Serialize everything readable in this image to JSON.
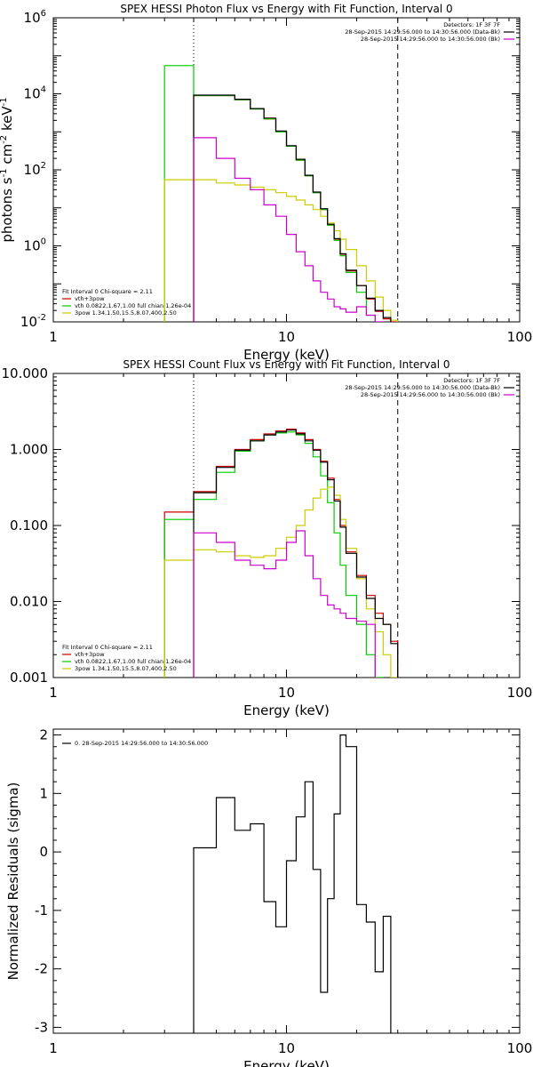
{
  "chart_data": [
    {
      "type": "line",
      "title": "SPEX HESSI Photon Flux vs Energy with Fit Function, Interval 0",
      "xlabel": "Energy (keV)",
      "ylabel_main": "photons s",
      "ylabel_sup1": "-1",
      "ylabel_mid": " cm",
      "ylabel_sup2": "-2",
      "ylabel_end": " keV",
      "ylabel_sup3": "-1",
      "xscale": "log",
      "yscale": "log",
      "xlim": [
        1,
        100
      ],
      "ylim": [
        0.01,
        1000000
      ],
      "xticks": [
        {
          "v": 1,
          "label": "1"
        },
        {
          "v": 10,
          "label": "10"
        },
        {
          "v": 100,
          "label": "100"
        }
      ],
      "yticks": [
        {
          "v": 0.01,
          "base": "10",
          "exp": "-2"
        },
        {
          "v": 1,
          "base": "10",
          "exp": "0"
        },
        {
          "v": 100,
          "base": "10",
          "exp": "2"
        },
        {
          "v": 10000,
          "base": "10",
          "exp": "4"
        },
        {
          "v": 1000000,
          "base": "10",
          "exp": "6"
        }
      ],
      "vlines": [
        {
          "x": 4.0,
          "style": "dotted"
        },
        {
          "x": 30.0,
          "style": "dashed"
        }
      ],
      "info": [
        "Detectors: 1F 3F 7F",
        "28-Sep-2015 14:29:56.000 to 14:30:56.000 (Data-Bk)",
        "28-Sep-2015 14:29:56.000 to 14:30:56.000 (Bk)"
      ],
      "info_colors": [
        "",
        "#000000",
        "#cc00cc"
      ],
      "legend_title": "Fit Interval 0   Chi-square = 2.11",
      "legend": [
        {
          "name": "vth+3pow",
          "color": "#cc0000"
        },
        {
          "name": "vth 0.0822,1.67,1.00  full chian 1.26e-04",
          "color": "#00cc00"
        },
        {
          "name": "3pow 1.34,1.50,15.5,8.07,400,2.50",
          "color": "#cccc00"
        }
      ],
      "edges": [
        3,
        4,
        5,
        6,
        7,
        8,
        9,
        10,
        11,
        12,
        13,
        14,
        15,
        16,
        17,
        18,
        20,
        22,
        24,
        26,
        28,
        30,
        33,
        36
      ],
      "series": [
        {
          "name": "vth+3pow",
          "color": "#cc0000",
          "values": [
            null,
            9000,
            9000,
            7000,
            4000,
            2200,
            1000,
            420,
            180,
            70,
            25,
            9,
            3.5,
            1.5,
            0.6,
            0.22,
            0.09,
            0.04,
            0.019,
            0.012,
            0.01,
            null,
            null
          ]
        },
        {
          "name": "vth",
          "color": "#00cc00",
          "values": [
            55000,
            9000,
            9000,
            7000,
            4000,
            2200,
            1000,
            420,
            180,
            70,
            25,
            9,
            3.5,
            1.4,
            0.55,
            0.2,
            0.06,
            0.015,
            0.005,
            null,
            null,
            null,
            null
          ]
        },
        {
          "name": "3pow",
          "color": "#cccc00",
          "values": [
            55,
            55,
            45,
            40,
            35,
            30,
            25,
            20,
            16,
            12,
            9,
            6,
            4,
            2.5,
            1.5,
            0.8,
            0.3,
            0.12,
            0.045,
            0.02,
            0.011,
            0.008,
            0.004
          ]
        },
        {
          "name": "data",
          "color": "#000000",
          "values": [
            null,
            9200,
            9200,
            7200,
            4100,
            2300,
            1050,
            430,
            190,
            72,
            26,
            9.5,
            3.7,
            1.55,
            0.62,
            0.23,
            0.09,
            0.042,
            0.02,
            0.013,
            0.0095,
            null,
            null
          ]
        },
        {
          "name": "background",
          "color": "#cc00cc",
          "values": [
            null,
            700,
            200,
            60,
            30,
            12,
            6,
            2,
            0.7,
            0.3,
            0.12,
            0.06,
            0.04,
            0.025,
            0.022,
            0.018,
            0.025,
            0.015,
            0.01,
            null,
            null,
            null,
            null
          ]
        }
      ]
    },
    {
      "type": "line",
      "title": "SPEX HESSI Count Flux vs Energy with Fit Function, Interval 0",
      "xlabel": "Energy (keV)",
      "xscale": "log",
      "yscale": "log",
      "xlim": [
        1,
        100
      ],
      "ylim": [
        0.001,
        10
      ],
      "xticks": [
        {
          "v": 1,
          "label": "1"
        },
        {
          "v": 10,
          "label": "10"
        },
        {
          "v": 100,
          "label": "100"
        }
      ],
      "yticks": [
        {
          "v": 0.001,
          "label": "0.001"
        },
        {
          "v": 0.01,
          "label": "0.010"
        },
        {
          "v": 0.1,
          "label": "0.100"
        },
        {
          "v": 1,
          "label": "1.000"
        },
        {
          "v": 10,
          "label": "10.000"
        }
      ],
      "vlines": [
        {
          "x": 4.0,
          "style": "dotted"
        },
        {
          "x": 30.0,
          "style": "dashed"
        }
      ],
      "info": [
        "Detectors: 1F 3F 7F",
        "28-Sep-2015 14:29:56.000 to 14:30:56.000 (Data-Bk)",
        "28-Sep-2015 14:29:56.000 to 14:30:56.000 (Bk)"
      ],
      "info_colors": [
        "",
        "#000000",
        "#cc00cc"
      ],
      "legend_title": "Fit Interval 0   Chi-square = 2.11",
      "legend": [
        {
          "name": "vth+3pow",
          "color": "#cc0000"
        },
        {
          "name": "vth 0.0822,1.67,1.00  full chian 1.26e-04",
          "color": "#00cc00"
        },
        {
          "name": "3pow 1.34,1.50,15.5,8.07,400,2.50",
          "color": "#cccc00"
        }
      ],
      "edges": [
        3,
        4,
        5,
        6,
        7,
        8,
        9,
        10,
        11,
        12,
        13,
        14,
        15,
        16,
        17,
        18,
        20,
        22,
        24,
        26,
        28,
        30,
        33,
        36
      ],
      "series": [
        {
          "name": "vth+3pow",
          "color": "#cc0000",
          "values": [
            0.15,
            0.28,
            0.6,
            1.0,
            1.35,
            1.6,
            1.75,
            1.85,
            1.65,
            1.35,
            1.0,
            0.7,
            0.42,
            0.22,
            0.1,
            0.045,
            0.022,
            0.012,
            0.007,
            0.005,
            0.003,
            null,
            null
          ]
        },
        {
          "name": "vth",
          "color": "#00cc00",
          "values": [
            0.12,
            0.22,
            0.5,
            0.95,
            1.3,
            1.55,
            1.65,
            1.7,
            1.55,
            1.2,
            0.8,
            0.45,
            0.2,
            0.08,
            0.03,
            0.012,
            0.005,
            0.002,
            0.001,
            null,
            null,
            null,
            null
          ]
        },
        {
          "name": "3pow",
          "color": "#cccc00",
          "values": [
            0.035,
            0.048,
            0.045,
            0.04,
            0.038,
            0.04,
            0.05,
            0.07,
            0.1,
            0.16,
            0.23,
            0.3,
            0.32,
            0.25,
            0.12,
            0.05,
            0.02,
            0.008,
            0.004,
            0.002,
            0.001,
            null,
            null
          ]
        },
        {
          "name": "data",
          "color": "#000000",
          "values": [
            null,
            0.27,
            0.58,
            0.98,
            1.3,
            1.55,
            1.7,
            1.8,
            1.6,
            1.3,
            0.98,
            0.68,
            0.4,
            0.21,
            0.095,
            0.043,
            0.021,
            0.011,
            0.006,
            0.005,
            0.0028,
            null,
            null
          ]
        },
        {
          "name": "background",
          "color": "#cc00cc",
          "values": [
            null,
            0.08,
            0.06,
            0.035,
            0.03,
            0.027,
            0.035,
            0.06,
            0.085,
            0.04,
            0.02,
            0.012,
            0.009,
            0.008,
            0.007,
            0.006,
            0.0055,
            0.005,
            null,
            null,
            null,
            null,
            null
          ]
        }
      ]
    },
    {
      "type": "line",
      "xlabel": "Energy (keV)",
      "ylabel": "Normalized Residuals (sigma)",
      "xscale": "log",
      "yscale": "linear",
      "xlim": [
        1,
        100
      ],
      "ylim": [
        -3.1,
        2.1
      ],
      "xticks": [
        {
          "v": 1,
          "label": "1"
        },
        {
          "v": 10,
          "label": "10"
        },
        {
          "v": 100,
          "label": "100"
        }
      ],
      "yticks": [
        {
          "v": -3,
          "label": "-3"
        },
        {
          "v": -2,
          "label": "-2"
        },
        {
          "v": -1,
          "label": "-1"
        },
        {
          "v": 0,
          "label": "0"
        },
        {
          "v": 1,
          "label": "1"
        },
        {
          "v": 2,
          "label": "2"
        }
      ],
      "legend": [
        {
          "name": "0. 28-Sep-2015 14:29:56.000 to 14:30:56.000",
          "color": "#000000"
        }
      ],
      "edges": [
        4,
        5,
        6,
        7,
        8,
        9,
        10,
        11,
        12,
        13,
        14,
        15,
        16,
        17,
        18,
        20,
        22,
        24,
        26,
        28,
        30
      ],
      "series": [
        {
          "name": "residuals",
          "color": "#000000",
          "values": [
            0.07,
            0.93,
            0.37,
            0.48,
            -0.85,
            -1.28,
            -0.15,
            0.6,
            1.2,
            -0.3,
            -2.4,
            -0.8,
            0.65,
            2.0,
            1.8,
            -0.9,
            -1.2,
            -2.05,
            -1.1,
            null
          ]
        }
      ]
    }
  ]
}
